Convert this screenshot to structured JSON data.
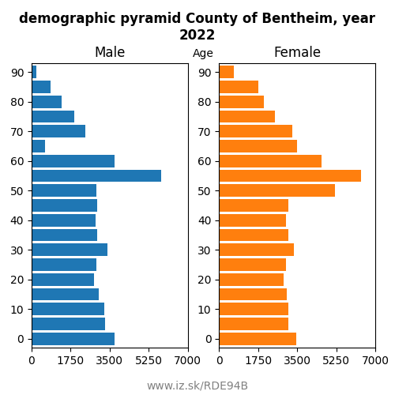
{
  "title": "demographic pyramid County of Bentheim, year 2022",
  "annotations": [
    "www.iz.sk/RDE94B"
  ],
  "chart_data": [
    {
      "type": "bar",
      "orientation": "horizontal",
      "title": "Male",
      "categories": [
        0,
        null,
        10,
        null,
        20,
        null,
        30,
        null,
        40,
        null,
        50,
        null,
        60,
        null,
        70,
        null,
        80,
        null,
        90
      ],
      "values": [
        3700,
        3300,
        3250,
        3000,
        2800,
        2900,
        3400,
        2950,
        2850,
        2950,
        2900,
        5800,
        3700,
        600,
        2400,
        1900,
        1350,
        850,
        220
      ],
      "xlim": [
        0,
        7000
      ],
      "xticks": [
        0,
        1750,
        3500,
        5250,
        7000
      ]
    },
    {
      "type": "bar",
      "orientation": "horizontal",
      "title": "Female",
      "y_label": "Age",
      "categories": [
        0,
        null,
        10,
        null,
        20,
        null,
        30,
        null,
        40,
        null,
        50,
        null,
        60,
        null,
        70,
        null,
        80,
        null,
        90
      ],
      "values": [
        3450,
        3100,
        3100,
        3050,
        2900,
        3000,
        3350,
        3100,
        3000,
        3100,
        5200,
        6350,
        4600,
        3500,
        3300,
        2500,
        2000,
        1750,
        650
      ],
      "xlim": [
        0,
        7000
      ],
      "xticks": [
        0,
        1750,
        3500,
        5250,
        7000
      ]
    }
  ]
}
